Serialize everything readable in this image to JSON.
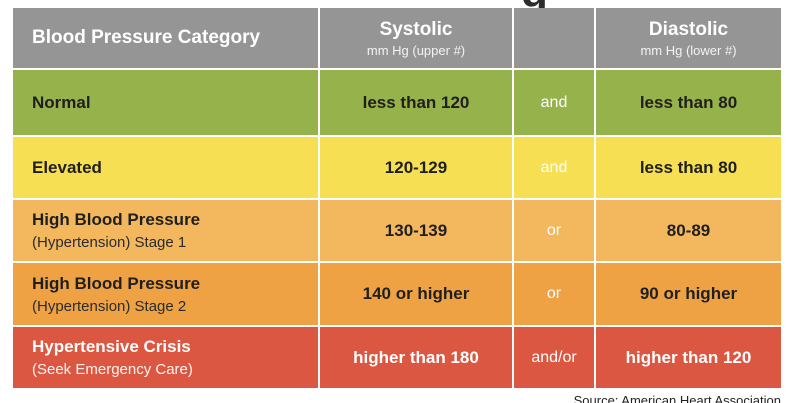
{
  "title_fragment": "g",
  "header": {
    "category_label": "Blood Pressure Category",
    "systolic_label": "Systolic",
    "systolic_unit": "mm Hg (upper #)",
    "diastolic_label": "Diastolic",
    "diastolic_unit": "mm Hg (lower #)"
  },
  "rows": [
    {
      "category": "Normal",
      "subcategory": "",
      "systolic": "less than 120",
      "conjunction": "and",
      "diastolic": "less than 80",
      "color": "#96b24a"
    },
    {
      "category": "Elevated",
      "subcategory": "",
      "systolic": "120-129",
      "conjunction": "and",
      "diastolic": "less than 80",
      "color": "#f7df53"
    },
    {
      "category": "High Blood Pressure",
      "subcategory": "(Hypertension) Stage 1",
      "systolic": "130-139",
      "conjunction": "or",
      "diastolic": "80-89",
      "color": "#f3b75e"
    },
    {
      "category": "High Blood Pressure",
      "subcategory": "(Hypertension) Stage 2",
      "systolic": "140 or higher",
      "conjunction": "or",
      "diastolic": "90 or higher",
      "color": "#efa244"
    },
    {
      "category": "Hypertensive Crisis",
      "subcategory": "(Seek Emergency Care)",
      "systolic": "higher than 180",
      "conjunction": "and/or",
      "diastolic": "higher than 120",
      "color": "#dc5741"
    }
  ],
  "source": "Source: American Heart Association"
}
